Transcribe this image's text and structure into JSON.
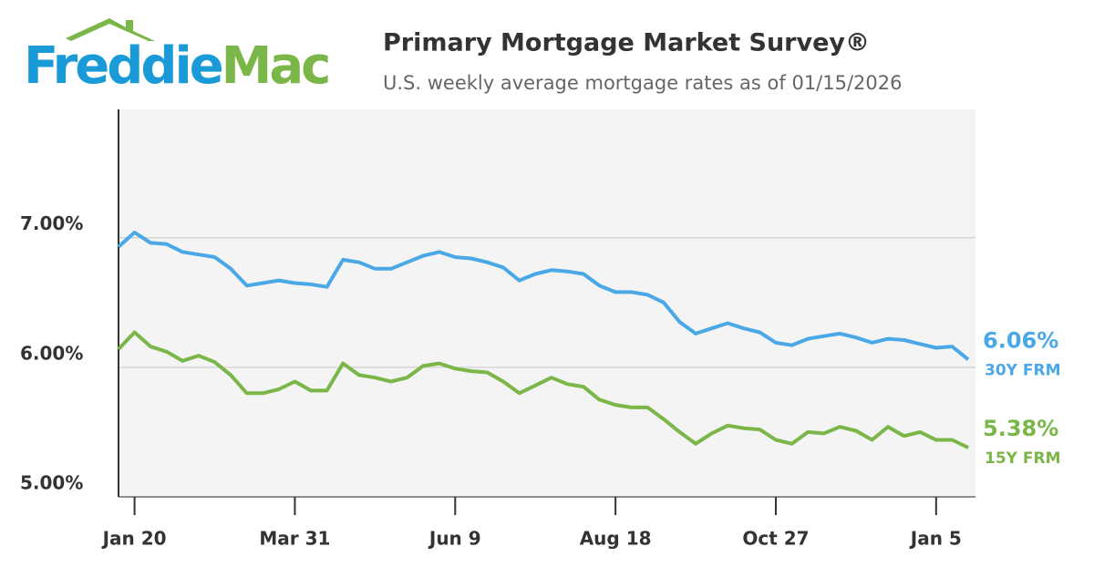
{
  "logo": {
    "left": "Freddie",
    "right": "Mac"
  },
  "chart_data": {
    "type": "line",
    "title": "Primary Mortgage Market Survey®",
    "subtitle": "U.S. weekly average mortgage rates as of 01/15/2026",
    "categories": [
      null,
      "Jan 20",
      null,
      null,
      null,
      null,
      null,
      null,
      null,
      null,
      null,
      "Mar 31",
      null,
      null,
      null,
      null,
      null,
      null,
      null,
      null,
      null,
      "Jun 9",
      null,
      null,
      null,
      null,
      null,
      null,
      null,
      null,
      null,
      "Aug 18",
      null,
      null,
      null,
      null,
      null,
      null,
      null,
      null,
      null,
      "Oct 27",
      null,
      null,
      null,
      null,
      null,
      null,
      null,
      null,
      null,
      "Jan 5",
      null,
      null
    ],
    "ylim": [
      5.0,
      7.99
    ],
    "yticks": [
      {
        "value": 5,
        "label": "5.00%"
      },
      {
        "value": 6,
        "label": "6.00%"
      },
      {
        "value": 7,
        "label": "7.00%"
      }
    ],
    "grid": true,
    "series": [
      {
        "name": "30Y FRM",
        "color": "#4aa8e6",
        "values": [
          6.93,
          7.04,
          6.96,
          6.95,
          6.89,
          6.87,
          6.85,
          6.76,
          6.63,
          6.65,
          6.67,
          6.65,
          6.64,
          6.62,
          6.83,
          6.81,
          6.76,
          6.76,
          6.81,
          6.86,
          6.89,
          6.85,
          6.84,
          6.81,
          6.77,
          6.67,
          6.72,
          6.75,
          6.74,
          6.72,
          6.63,
          6.58,
          6.58,
          6.56,
          6.5,
          6.35,
          6.26,
          6.3,
          6.34,
          6.3,
          6.27,
          6.19,
          6.17,
          6.22,
          6.24,
          6.26,
          6.23,
          6.19,
          6.22,
          6.21,
          6.18,
          6.15,
          6.16,
          6.06
        ],
        "value_labels": [
          null,
          null,
          null,
          null,
          null,
          null,
          null,
          null,
          null,
          null,
          null,
          null,
          null,
          null,
          null,
          null,
          null,
          null,
          null,
          null,
          null,
          null,
          null,
          null,
          null,
          null,
          null,
          null,
          null,
          null,
          null,
          null,
          null,
          null,
          null,
          null,
          null,
          null,
          null,
          null,
          null,
          null,
          null,
          null,
          null,
          null,
          null,
          null,
          null,
          null,
          null,
          null,
          null,
          "6.06%"
        ]
      },
      {
        "name": "15Y FRM",
        "color": "#7ab648",
        "values": [
          6.14,
          6.27,
          6.16,
          6.12,
          6.05,
          6.09,
          6.04,
          5.94,
          5.8,
          5.8,
          5.83,
          5.89,
          5.82,
          5.82,
          6.03,
          5.94,
          5.92,
          5.89,
          5.92,
          6.01,
          6.03,
          5.99,
          5.97,
          5.96,
          5.89,
          5.8,
          5.86,
          5.92,
          5.87,
          5.85,
          5.75,
          5.71,
          5.69,
          5.69,
          5.6,
          5.5,
          5.41,
          5.49,
          5.55,
          5.53,
          5.52,
          5.44,
          5.41,
          5.5,
          5.49,
          5.54,
          5.51,
          5.44,
          5.54,
          5.47,
          5.5,
          5.44,
          5.44,
          5.38
        ],
        "value_labels": [
          null,
          null,
          null,
          null,
          null,
          null,
          null,
          null,
          null,
          null,
          null,
          null,
          null,
          null,
          null,
          null,
          null,
          null,
          null,
          null,
          null,
          null,
          null,
          null,
          null,
          null,
          null,
          null,
          null,
          null,
          null,
          null,
          null,
          null,
          null,
          null,
          null,
          null,
          null,
          null,
          null,
          null,
          null,
          null,
          null,
          null,
          null,
          null,
          null,
          null,
          null,
          null,
          null,
          "5.38%"
        ]
      }
    ]
  }
}
